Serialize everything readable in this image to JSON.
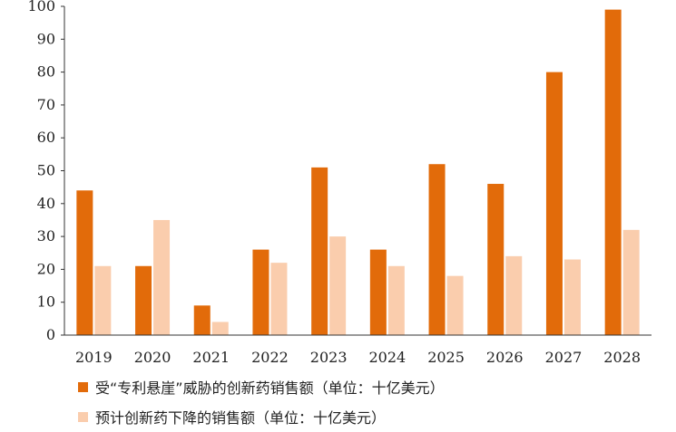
{
  "chart_data": {
    "type": "bar",
    "categories": [
      "2019",
      "2020",
      "2021",
      "2022",
      "2023",
      "2024",
      "2025",
      "2026",
      "2027",
      "2028"
    ],
    "series": [
      {
        "name": "受“专利悬崖”威胁的创新药销售额（单位：十亿美元）",
        "values": [
          44,
          21,
          9,
          26,
          51,
          26,
          52,
          46,
          80,
          99
        ],
        "color": "#E26B0A"
      },
      {
        "name": "预计创新药下降的销售额（单位：十亿美元）",
        "values": [
          21,
          35,
          4,
          22,
          30,
          21,
          18,
          24,
          23,
          32
        ],
        "color": "#FACDAD"
      }
    ],
    "ylim": [
      0,
      100
    ],
    "yticks": [
      0,
      10,
      20,
      30,
      40,
      50,
      60,
      70,
      80,
      90,
      100
    ],
    "title": "",
    "xlabel": "",
    "ylabel": "",
    "grid": false,
    "legend_position": "bottom-left"
  }
}
